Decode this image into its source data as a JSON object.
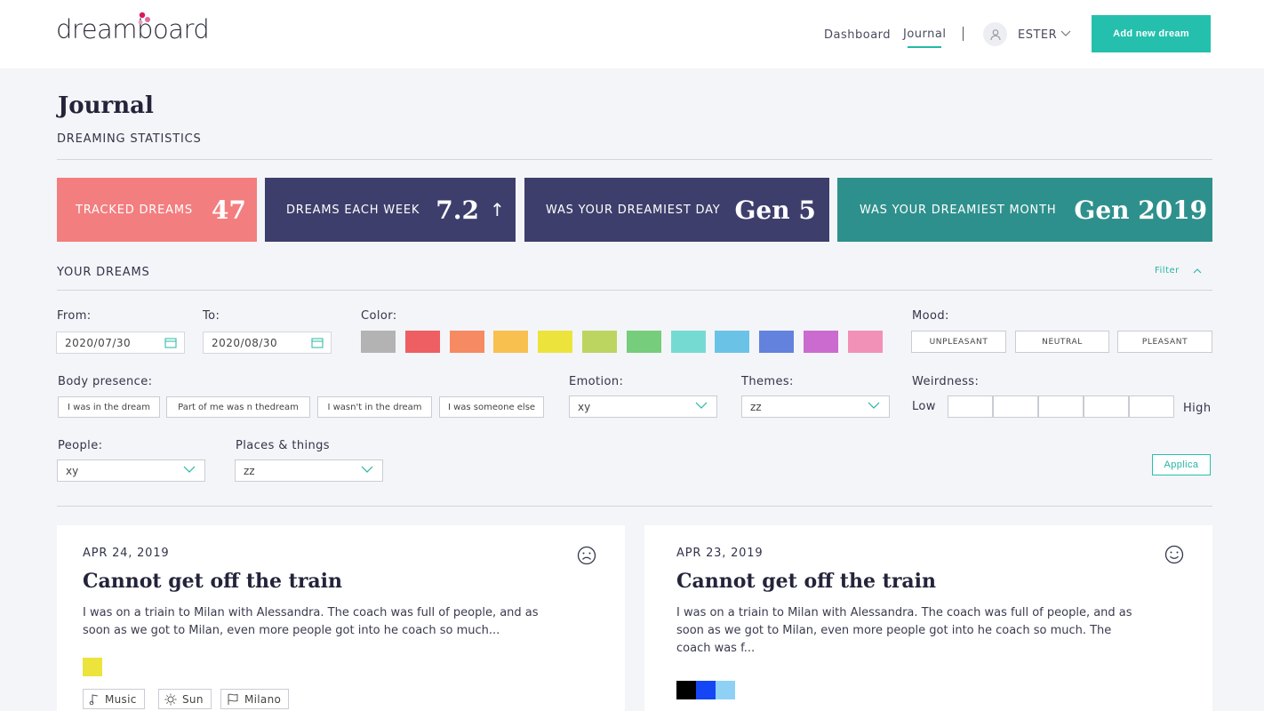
{
  "header": {
    "logo_text": "dreamboard",
    "nav": [
      "Dashboard",
      "Journal"
    ],
    "user_name": "ESTER",
    "add_button": "Add new dream",
    "brand_color": "#25c0ad"
  },
  "page": {
    "title": "Journal",
    "statistics_heading": "DREAMING STATISTICS"
  },
  "stats": [
    {
      "label": "TRACKED DREAMS",
      "value": "47",
      "color": "#f37e7f"
    },
    {
      "label": "DREAMS EACH WEEK",
      "value": "7.2",
      "trend": "↑",
      "color": "#3d3e6b"
    },
    {
      "label": "WAS YOUR DREAMIEST DAY",
      "value": "Gen 5",
      "color": "#3d3e6b"
    },
    {
      "label": "WAS YOUR DREAMIEST MONTH",
      "value": "Gen 2019",
      "color": "#2e908c"
    }
  ],
  "dreams_section": {
    "heading": "YOUR DREAMS",
    "filter_label": "Filter"
  },
  "filters": {
    "from_label": "From:",
    "from_value": "2020/07/30",
    "to_label": "To:",
    "to_value": "2020/08/30",
    "color_label": "Color:",
    "colors": [
      "#b3b3b3",
      "#ee5f63",
      "#f68a62",
      "#f8c04f",
      "#ece43c",
      "#bcd560",
      "#76cd7b",
      "#75dbd2",
      "#6ac3e6",
      "#6282de",
      "#cb6bcf",
      "#f191b8"
    ],
    "mood_label": "Mood:",
    "moods": [
      "UNPLEASANT",
      "NEUTRAL",
      "PLEASANT"
    ],
    "body_label": "Body presence:",
    "body_options": [
      "I was in the dream",
      "Part of me was n thedream",
      "I wasn't in the dream",
      "I was someone else"
    ],
    "emotion_label": "Emotion:",
    "emotion_value": "xy",
    "themes_label": "Themes:",
    "themes_value": "zz",
    "weirdness_label": "Weirdness:",
    "weird_low": "Low",
    "weird_high": "High",
    "people_label": "People:",
    "people_value": "xy",
    "places_label": "Places & things",
    "places_value": "zz",
    "apply_label": "Applica"
  },
  "cards": [
    {
      "date": "APR 24, 2019",
      "title": "Cannot get off the train",
      "excerpt_lines": [
        "I was on a triain to Milan with Alessandra. The coach was full of people, and as",
        "soon as we got to Milan, even more people got into he coach so much..."
      ],
      "mood_icon": "sad-face-icon",
      "swatches": [
        "#ece43c"
      ],
      "tags": [
        {
          "icon": "music-note-icon",
          "label": "Music"
        },
        {
          "icon": "sun-icon",
          "label": "Sun"
        },
        {
          "icon": "flag-icon",
          "label": "Milano"
        }
      ]
    },
    {
      "date": "APR 23, 2019",
      "title": "Cannot get off the train",
      "excerpt_lines": [
        "I was on a triain to Milan with Alessandra. The coach was full of people, and as",
        "soon as we got to Milan, even more people got into he coach so much. The",
        "coach was f..."
      ],
      "mood_icon": "smile-face-icon",
      "swatches": [
        "#000000",
        "#1446f5",
        "#8fd0f5"
      ],
      "tags": []
    }
  ]
}
